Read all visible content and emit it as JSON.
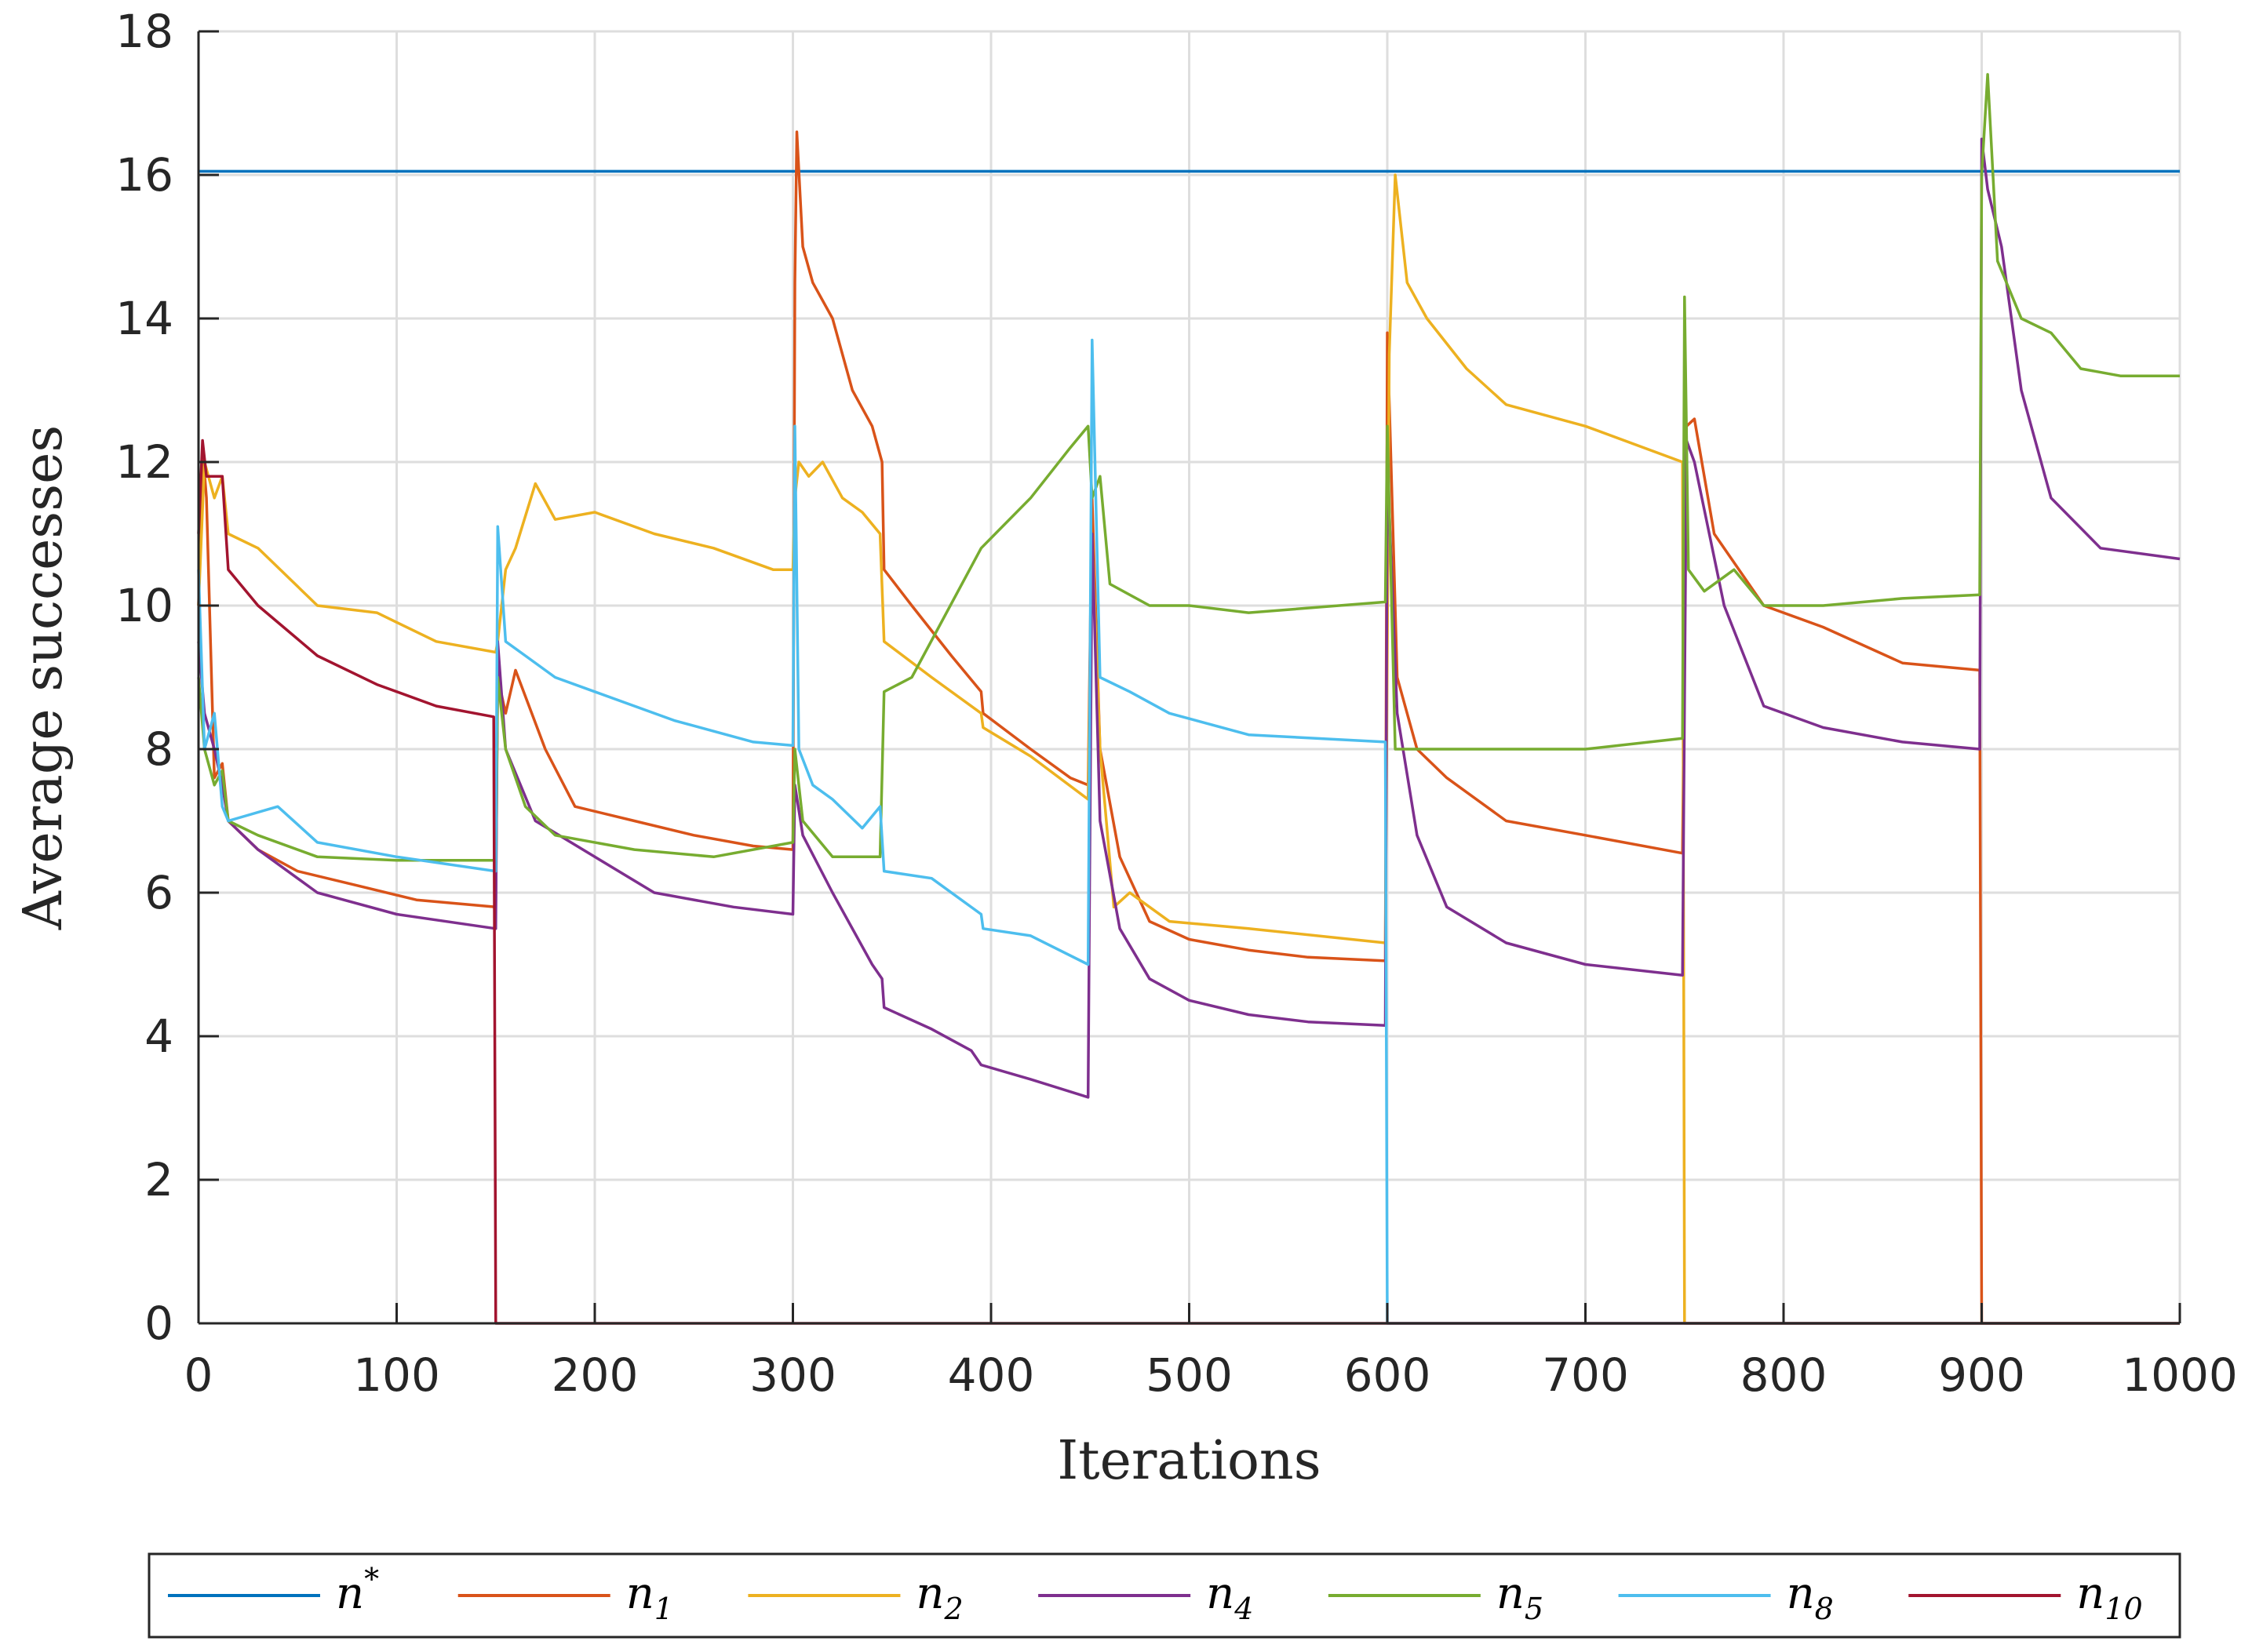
{
  "chart_data": {
    "type": "line",
    "xlabel": "Iterations",
    "ylabel": "Average successes",
    "xlim": [
      0,
      1000
    ],
    "ylim": [
      0,
      18
    ],
    "xticks": [
      0,
      100,
      200,
      300,
      400,
      500,
      600,
      700,
      800,
      900,
      1000
    ],
    "yticks": [
      0,
      2,
      4,
      6,
      8,
      10,
      12,
      14,
      16,
      18
    ],
    "grid": true,
    "legend_position": "bottom-outside",
    "series": [
      {
        "name": "n*",
        "base": "n",
        "sup": "*",
        "sub": "",
        "color": "#0072BD",
        "points": [
          [
            0,
            16.05
          ],
          [
            1000,
            16.05
          ]
        ]
      },
      {
        "name": "n1",
        "base": "n",
        "sup": "",
        "sub": "1",
        "color": "#D95319",
        "points": [
          [
            0,
            10
          ],
          [
            2,
            12.2
          ],
          [
            4,
            11.5
          ],
          [
            8,
            7.6
          ],
          [
            12,
            7.8
          ],
          [
            15,
            7.0
          ],
          [
            30,
            6.6
          ],
          [
            50,
            6.3
          ],
          [
            80,
            6.1
          ],
          [
            110,
            5.9
          ],
          [
            150,
            5.8
          ],
          [
            151,
            9.0
          ],
          [
            155,
            8.5
          ],
          [
            160,
            9.1
          ],
          [
            175,
            8.0
          ],
          [
            190,
            7.2
          ],
          [
            220,
            7.0
          ],
          [
            250,
            6.8
          ],
          [
            280,
            6.65
          ],
          [
            300,
            6.6
          ],
          [
            301,
            14.5
          ],
          [
            302,
            16.6
          ],
          [
            305,
            15.0
          ],
          [
            310,
            14.5
          ],
          [
            320,
            14.0
          ],
          [
            330,
            13.0
          ],
          [
            340,
            12.5
          ],
          [
            345,
            12.0
          ],
          [
            346,
            10.5
          ],
          [
            360,
            10.0
          ],
          [
            380,
            9.3
          ],
          [
            395,
            8.8
          ],
          [
            396,
            8.5
          ],
          [
            420,
            8.0
          ],
          [
            440,
            7.6
          ],
          [
            449,
            7.5
          ],
          [
            451,
            11.5
          ],
          [
            455,
            8.0
          ],
          [
            465,
            6.5
          ],
          [
            480,
            5.6
          ],
          [
            500,
            5.35
          ],
          [
            530,
            5.2
          ],
          [
            560,
            5.1
          ],
          [
            599,
            5.05
          ],
          [
            600,
            13.8
          ],
          [
            605,
            9.0
          ],
          [
            615,
            8.0
          ],
          [
            630,
            7.6
          ],
          [
            660,
            7.0
          ],
          [
            700,
            6.8
          ],
          [
            749,
            6.55
          ],
          [
            751,
            12.5
          ],
          [
            755,
            12.6
          ],
          [
            765,
            11.0
          ],
          [
            790,
            10.0
          ],
          [
            820,
            9.7
          ],
          [
            860,
            9.2
          ],
          [
            899,
            9.1
          ],
          [
            900,
            0
          ],
          [
            1000,
            0
          ]
        ]
      },
      {
        "name": "n2",
        "base": "n",
        "sup": "",
        "sub": "2",
        "color": "#EDB120",
        "points": [
          [
            0,
            10
          ],
          [
            3,
            12.0
          ],
          [
            8,
            11.5
          ],
          [
            12,
            11.8
          ],
          [
            15,
            11.0
          ],
          [
            30,
            10.8
          ],
          [
            60,
            10.0
          ],
          [
            90,
            9.9
          ],
          [
            120,
            9.5
          ],
          [
            150,
            9.35
          ],
          [
            151,
            9.5
          ],
          [
            155,
            10.5
          ],
          [
            160,
            10.8
          ],
          [
            170,
            11.7
          ],
          [
            180,
            11.2
          ],
          [
            200,
            11.3
          ],
          [
            230,
            11.0
          ],
          [
            260,
            10.8
          ],
          [
            290,
            10.5
          ],
          [
            300,
            10.5
          ],
          [
            301,
            11.5
          ],
          [
            303,
            12.0
          ],
          [
            308,
            11.8
          ],
          [
            315,
            12.0
          ],
          [
            325,
            11.5
          ],
          [
            335,
            11.3
          ],
          [
            344,
            11.0
          ],
          [
            346,
            9.5
          ],
          [
            370,
            9.0
          ],
          [
            395,
            8.5
          ],
          [
            396,
            8.3
          ],
          [
            420,
            7.9
          ],
          [
            449,
            7.3
          ],
          [
            451,
            11.0
          ],
          [
            455,
            8.0
          ],
          [
            462,
            5.8
          ],
          [
            470,
            6.0
          ],
          [
            490,
            5.6
          ],
          [
            530,
            5.5
          ],
          [
            599,
            5.3
          ],
          [
            601,
            13.5
          ],
          [
            604,
            16.0
          ],
          [
            610,
            14.5
          ],
          [
            620,
            14.0
          ],
          [
            640,
            13.3
          ],
          [
            660,
            12.8
          ],
          [
            700,
            12.5
          ],
          [
            749,
            12.0
          ],
          [
            750,
            0
          ],
          [
            1000,
            0
          ]
        ]
      },
      {
        "name": "n4",
        "base": "n",
        "sup": "",
        "sub": "4",
        "color": "#7E2F8E",
        "points": [
          [
            0,
            9.5
          ],
          [
            3,
            8.5
          ],
          [
            8,
            8.0
          ],
          [
            12,
            7.5
          ],
          [
            15,
            7.0
          ],
          [
            30,
            6.6
          ],
          [
            60,
            6.0
          ],
          [
            100,
            5.7
          ],
          [
            150,
            5.5
          ],
          [
            151,
            9.5
          ],
          [
            155,
            8.0
          ],
          [
            170,
            7.0
          ],
          [
            200,
            6.5
          ],
          [
            230,
            6.0
          ],
          [
            270,
            5.8
          ],
          [
            300,
            5.7
          ],
          [
            301,
            7.5
          ],
          [
            305,
            6.8
          ],
          [
            320,
            6.0
          ],
          [
            340,
            5.0
          ],
          [
            345,
            4.8
          ],
          [
            346,
            4.4
          ],
          [
            370,
            4.1
          ],
          [
            390,
            3.8
          ],
          [
            395,
            3.6
          ],
          [
            420,
            3.4
          ],
          [
            449,
            3.15
          ],
          [
            451,
            11.0
          ],
          [
            455,
            7.0
          ],
          [
            465,
            5.5
          ],
          [
            480,
            4.8
          ],
          [
            500,
            4.5
          ],
          [
            530,
            4.3
          ],
          [
            560,
            4.2
          ],
          [
            599,
            4.15
          ],
          [
            600,
            12.0
          ],
          [
            605,
            8.5
          ],
          [
            615,
            6.8
          ],
          [
            630,
            5.8
          ],
          [
            660,
            5.3
          ],
          [
            700,
            5.0
          ],
          [
            749,
            4.85
          ],
          [
            751,
            12.3
          ],
          [
            755,
            12.0
          ],
          [
            770,
            10.0
          ],
          [
            790,
            8.6
          ],
          [
            820,
            8.3
          ],
          [
            860,
            8.1
          ],
          [
            899,
            8.0
          ],
          [
            900,
            16.5
          ],
          [
            903,
            15.8
          ],
          [
            910,
            15.0
          ],
          [
            920,
            13.0
          ],
          [
            935,
            11.5
          ],
          [
            960,
            10.8
          ],
          [
            1000,
            10.65
          ]
        ]
      },
      {
        "name": "n5",
        "base": "n",
        "sup": "",
        "sub": "5",
        "color": "#77AC30",
        "points": [
          [
            0,
            9.0
          ],
          [
            3,
            8.0
          ],
          [
            8,
            7.5
          ],
          [
            12,
            7.7
          ],
          [
            15,
            7.0
          ],
          [
            30,
            6.8
          ],
          [
            60,
            6.5
          ],
          [
            100,
            6.45
          ],
          [
            150,
            6.45
          ],
          [
            151,
            9.0
          ],
          [
            155,
            8.0
          ],
          [
            165,
            7.2
          ],
          [
            180,
            6.8
          ],
          [
            220,
            6.6
          ],
          [
            260,
            6.5
          ],
          [
            300,
            6.7
          ],
          [
            301,
            8.0
          ],
          [
            305,
            7.0
          ],
          [
            320,
            6.5
          ],
          [
            344,
            6.5
          ],
          [
            346,
            8.8
          ],
          [
            360,
            9.0
          ],
          [
            395,
            10.8
          ],
          [
            420,
            11.5
          ],
          [
            440,
            12.2
          ],
          [
            449,
            12.5
          ],
          [
            451,
            11.5
          ],
          [
            455,
            11.8
          ],
          [
            460,
            10.3
          ],
          [
            480,
            10.0
          ],
          [
            500,
            10.0
          ],
          [
            530,
            9.9
          ],
          [
            599,
            10.05
          ],
          [
            600,
            12.5
          ],
          [
            604,
            8.0
          ],
          [
            620,
            8.0
          ],
          [
            660,
            8.0
          ],
          [
            700,
            8.0
          ],
          [
            749,
            8.15
          ],
          [
            750,
            14.3
          ],
          [
            752,
            10.5
          ],
          [
            760,
            10.2
          ],
          [
            775,
            10.5
          ],
          [
            790,
            10.0
          ],
          [
            820,
            10.0
          ],
          [
            860,
            10.1
          ],
          [
            899,
            10.15
          ],
          [
            900,
            16.0
          ],
          [
            903,
            17.4
          ],
          [
            908,
            14.8
          ],
          [
            920,
            14.0
          ],
          [
            935,
            13.8
          ],
          [
            950,
            13.3
          ],
          [
            970,
            13.2
          ],
          [
            1000,
            13.2
          ]
        ]
      },
      {
        "name": "n8",
        "base": "n",
        "sup": "",
        "sub": "8",
        "color": "#4DBEEE",
        "points": [
          [
            0,
            10.5
          ],
          [
            3,
            8.0
          ],
          [
            8,
            8.5
          ],
          [
            12,
            7.2
          ],
          [
            15,
            7.0
          ],
          [
            40,
            7.2
          ],
          [
            60,
            6.7
          ],
          [
            100,
            6.5
          ],
          [
            150,
            6.3
          ],
          [
            151,
            11.1
          ],
          [
            155,
            9.5
          ],
          [
            165,
            9.3
          ],
          [
            180,
            9.0
          ],
          [
            200,
            8.8
          ],
          [
            240,
            8.4
          ],
          [
            280,
            8.1
          ],
          [
            300,
            8.05
          ],
          [
            301,
            12.5
          ],
          [
            303,
            8.0
          ],
          [
            310,
            7.5
          ],
          [
            320,
            7.3
          ],
          [
            335,
            6.9
          ],
          [
            344,
            7.2
          ],
          [
            346,
            6.3
          ],
          [
            370,
            6.2
          ],
          [
            395,
            5.7
          ],
          [
            396,
            5.5
          ],
          [
            420,
            5.4
          ],
          [
            449,
            5.0
          ],
          [
            451,
            13.7
          ],
          [
            455,
            9.0
          ],
          [
            470,
            8.8
          ],
          [
            490,
            8.5
          ],
          [
            530,
            8.2
          ],
          [
            599,
            8.1
          ],
          [
            600,
            0
          ],
          [
            1000,
            0
          ]
        ]
      },
      {
        "name": "n10",
        "base": "n",
        "sup": "",
        "sub": "10",
        "color": "#A2142F",
        "points": [
          [
            0,
            11.0
          ],
          [
            2,
            12.3
          ],
          [
            4,
            11.8
          ],
          [
            8,
            11.8
          ],
          [
            12,
            11.8
          ],
          [
            15,
            10.5
          ],
          [
            30,
            10.0
          ],
          [
            60,
            9.3
          ],
          [
            90,
            8.9
          ],
          [
            120,
            8.6
          ],
          [
            149,
            8.45
          ],
          [
            150,
            0
          ],
          [
            1000,
            0
          ]
        ]
      }
    ]
  }
}
